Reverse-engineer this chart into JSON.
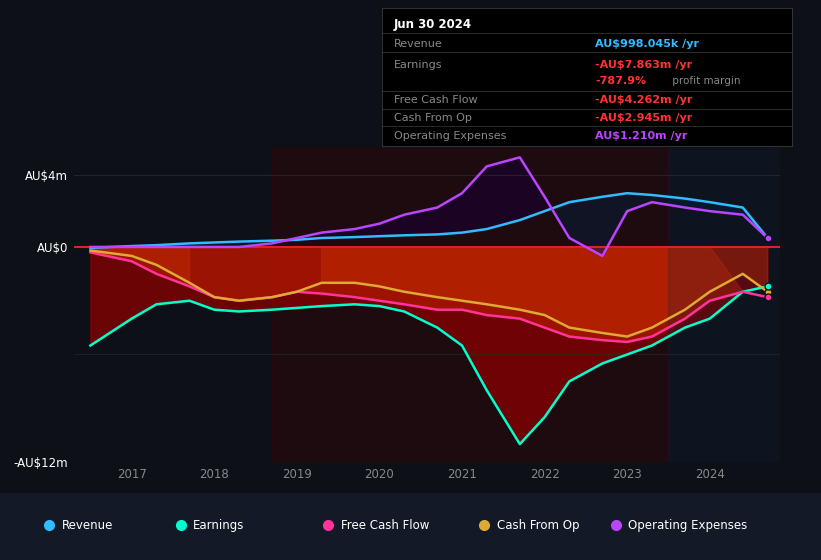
{
  "bg_color": "#0d1117",
  "plot_bg_color": "#0d1117",
  "ylabel_top": "AU$4m",
  "ylabel_zero": "AU$0",
  "ylabel_bottom": "-AU$12m",
  "ylim": [
    -12,
    5.5
  ],
  "xlim": [
    2016.3,
    2024.85
  ],
  "x_ticks": [
    2017,
    2018,
    2019,
    2020,
    2021,
    2022,
    2023,
    2024
  ],
  "revenue_color": "#33bbff",
  "earnings_color": "#00ffcc",
  "fcf_color": "#ff3399",
  "cashfromop_color": "#ddaa33",
  "opex_color": "#bb44ff",
  "zero_line_color": "#dd2222",
  "grid_color": "#2a2a2a",
  "info_box": {
    "date": "Jun 30 2024",
    "revenue_label": "Revenue",
    "revenue_value": "AU$998.045k",
    "revenue_color": "#33bbff",
    "earnings_label": "Earnings",
    "earnings_value": "-AU$7.863m",
    "earnings_color": "#ff3333",
    "margin_value": "-787.9%",
    "margin_color": "#ff3333",
    "fcf_label": "Free Cash Flow",
    "fcf_value": "-AU$4.262m",
    "fcf_color": "#ff3333",
    "cashfromop_label": "Cash From Op",
    "cashfromop_value": "-AU$2.945m",
    "cashfromop_color": "#ff3333",
    "opex_label": "Operating Expenses",
    "opex_value": "AU$1.210m",
    "opex_color": "#bb44ff"
  },
  "legend": [
    {
      "label": "Revenue",
      "color": "#33bbff"
    },
    {
      "label": "Earnings",
      "color": "#00ffcc"
    },
    {
      "label": "Free Cash Flow",
      "color": "#ff3399"
    },
    {
      "label": "Cash From Op",
      "color": "#ddaa33"
    },
    {
      "label": "Operating Expenses",
      "color": "#bb44ff"
    }
  ],
  "x_data": [
    2016.5,
    2017.0,
    2017.3,
    2017.7,
    2018.0,
    2018.3,
    2018.7,
    2019.0,
    2019.3,
    2019.7,
    2020.0,
    2020.3,
    2020.7,
    2021.0,
    2021.3,
    2021.7,
    2022.0,
    2022.3,
    2022.7,
    2023.0,
    2023.3,
    2023.7,
    2024.0,
    2024.4,
    2024.7
  ],
  "revenue": [
    -0.05,
    0.05,
    0.1,
    0.2,
    0.25,
    0.3,
    0.35,
    0.4,
    0.5,
    0.55,
    0.6,
    0.65,
    0.7,
    0.8,
    1.0,
    1.5,
    2.0,
    2.5,
    2.8,
    3.0,
    2.9,
    2.7,
    2.5,
    2.2,
    0.5
  ],
  "earnings": [
    -5.5,
    -4.0,
    -3.2,
    -3.0,
    -3.5,
    -3.6,
    -3.5,
    -3.4,
    -3.3,
    -3.2,
    -3.3,
    -3.6,
    -4.5,
    -5.5,
    -8.0,
    -11.0,
    -9.5,
    -7.5,
    -6.5,
    -6.0,
    -5.5,
    -4.5,
    -4.0,
    -2.5,
    -2.2
  ],
  "fcf": [
    -0.3,
    -0.8,
    -1.5,
    -2.2,
    -2.8,
    -3.0,
    -2.8,
    -2.5,
    -2.6,
    -2.8,
    -3.0,
    -3.2,
    -3.5,
    -3.5,
    -3.8,
    -4.0,
    -4.5,
    -5.0,
    -5.2,
    -5.3,
    -5.0,
    -4.0,
    -3.0,
    -2.5,
    -2.8
  ],
  "cashfromop": [
    -0.2,
    -0.5,
    -1.0,
    -2.0,
    -2.8,
    -3.0,
    -2.8,
    -2.5,
    -2.0,
    -2.0,
    -2.2,
    -2.5,
    -2.8,
    -3.0,
    -3.2,
    -3.5,
    -3.8,
    -4.5,
    -4.8,
    -5.0,
    -4.5,
    -3.5,
    -2.5,
    -1.5,
    -2.5
  ],
  "opex": [
    0.0,
    0.0,
    0.0,
    0.0,
    0.0,
    0.0,
    0.2,
    0.5,
    0.8,
    1.0,
    1.3,
    1.8,
    2.2,
    3.0,
    4.5,
    5.0,
    2.8,
    0.5,
    -0.5,
    2.0,
    2.5,
    2.2,
    2.0,
    1.8,
    0.5
  ]
}
